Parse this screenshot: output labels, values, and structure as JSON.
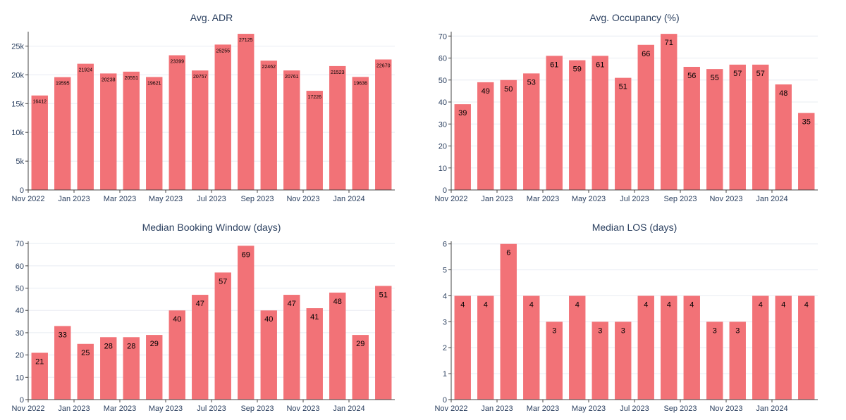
{
  "chart_data": [
    {
      "type": "bar",
      "title": "Avg. ADR",
      "xlabel": "",
      "ylabel": "",
      "ylim": [
        0,
        27500
      ],
      "y_ticks": [
        "0",
        "5k",
        "10k",
        "15k",
        "20k",
        "25k"
      ],
      "y_tick_values": [
        0,
        5000,
        10000,
        15000,
        20000,
        25000
      ],
      "x_tick_labels": [
        "Nov 2022",
        "Jan 2023",
        "Mar 2023",
        "May 2023",
        "Jul 2023",
        "Sep 2023",
        "Nov 2023",
        "Jan 2024"
      ],
      "categories": [
        "2022-11",
        "2022-12",
        "2023-01",
        "2023-02",
        "2023-03",
        "2023-04",
        "2023-05",
        "2023-06",
        "2023-07",
        "2023-08",
        "2023-09",
        "2023-10",
        "2023-11",
        "2023-12",
        "2024-01",
        "2024-02"
      ],
      "values": [
        16412,
        19595,
        21924,
        20238,
        20551,
        19621,
        23399,
        20757,
        25255,
        27125,
        22462,
        20761,
        17226,
        21523,
        19636,
        22670
      ],
      "label_size": "small",
      "bar_color": "#f27277",
      "grid": true
    },
    {
      "type": "bar",
      "title": "Avg. Occupancy (%)",
      "xlabel": "",
      "ylabel": "",
      "ylim": [
        0,
        72
      ],
      "y_ticks": [
        "0",
        "10",
        "20",
        "30",
        "40",
        "50",
        "60",
        "70"
      ],
      "y_tick_values": [
        0,
        10,
        20,
        30,
        40,
        50,
        60,
        70
      ],
      "x_tick_labels": [
        "Nov 2022",
        "Jan 2023",
        "Mar 2023",
        "May 2023",
        "Jul 2023",
        "Sep 2023",
        "Nov 2023",
        "Jan 2024"
      ],
      "categories": [
        "2022-11",
        "2022-12",
        "2023-01",
        "2023-02",
        "2023-03",
        "2023-04",
        "2023-05",
        "2023-06",
        "2023-07",
        "2023-08",
        "2023-09",
        "2023-10",
        "2023-11",
        "2023-12",
        "2024-01",
        "2024-02"
      ],
      "values": [
        39,
        49,
        50,
        53,
        61,
        59,
        61,
        51,
        66,
        71,
        56,
        55,
        57,
        57,
        48,
        35
      ],
      "label_size": "normal",
      "bar_color": "#f27277",
      "grid": true
    },
    {
      "type": "bar",
      "title": "Median Booking Window (days)",
      "xlabel": "",
      "ylabel": "",
      "ylim": [
        0,
        71
      ],
      "y_ticks": [
        "0",
        "10",
        "20",
        "30",
        "40",
        "50",
        "60",
        "70"
      ],
      "y_tick_values": [
        0,
        10,
        20,
        30,
        40,
        50,
        60,
        70
      ],
      "x_tick_labels": [
        "Nov 2022",
        "Jan 2023",
        "Mar 2023",
        "May 2023",
        "Jul 2023",
        "Sep 2023",
        "Nov 2023",
        "Jan 2024"
      ],
      "categories": [
        "2022-11",
        "2022-12",
        "2023-01",
        "2023-02",
        "2023-03",
        "2023-04",
        "2023-05",
        "2023-06",
        "2023-07",
        "2023-08",
        "2023-09",
        "2023-10",
        "2023-11",
        "2023-12",
        "2024-01",
        "2024-02"
      ],
      "values": [
        21,
        33,
        25,
        28,
        28,
        29,
        40,
        47,
        57,
        69,
        40,
        47,
        41,
        48,
        29,
        51
      ],
      "label_size": "normal",
      "bar_color": "#f27277",
      "grid": true
    },
    {
      "type": "bar",
      "title": "Median LOS (days)",
      "xlabel": "",
      "ylabel": "",
      "ylim": [
        0,
        6.1
      ],
      "y_ticks": [
        "0",
        "1",
        "2",
        "3",
        "4",
        "5",
        "6"
      ],
      "y_tick_values": [
        0,
        1,
        2,
        3,
        4,
        5,
        6
      ],
      "x_tick_labels": [
        "Nov 2022",
        "Jan 2023",
        "Mar 2023",
        "May 2023",
        "Jul 2023",
        "Sep 2023",
        "Nov 2023",
        "Jan 2024"
      ],
      "categories": [
        "2022-11",
        "2022-12",
        "2023-01",
        "2023-02",
        "2023-03",
        "2023-04",
        "2023-05",
        "2023-06",
        "2023-07",
        "2023-08",
        "2023-09",
        "2023-10",
        "2023-11",
        "2023-12",
        "2024-01",
        "2024-02"
      ],
      "values": [
        4,
        4,
        6,
        4,
        3,
        4,
        3,
        3,
        4,
        4,
        4,
        3,
        3,
        4,
        4,
        4
      ],
      "label_size": "normal",
      "bar_color": "#f27277",
      "grid": true
    }
  ]
}
